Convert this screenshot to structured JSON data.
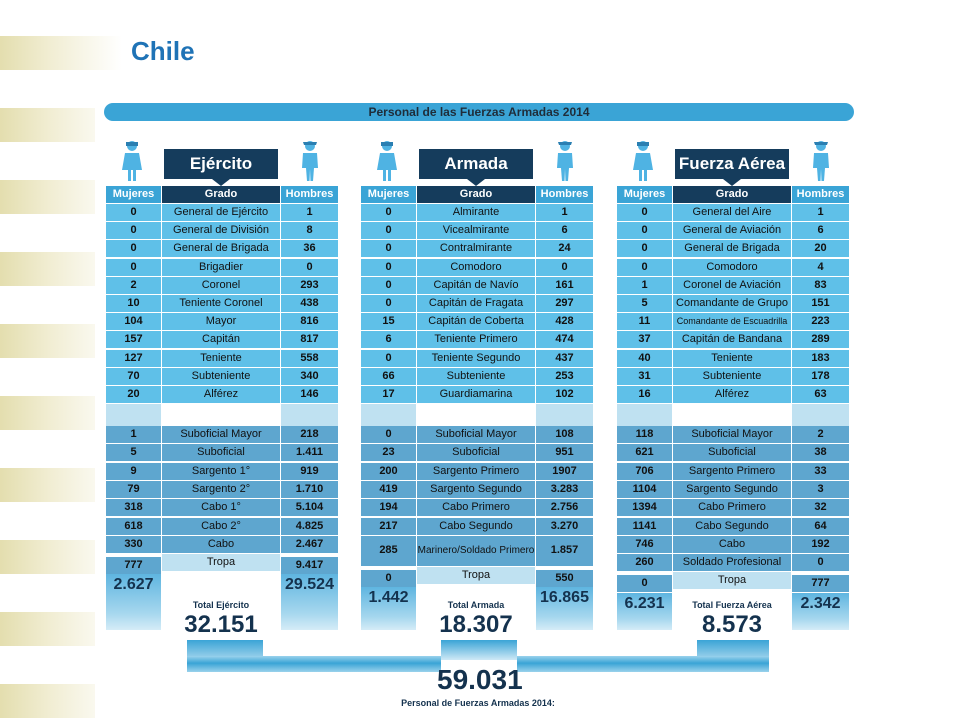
{
  "slide_title": "Chile",
  "banner": "Personal de las Fuerzas Armadas 2014",
  "column_headers": {
    "women": "Mujeres",
    "rank": "Grado",
    "men": "Hombres"
  },
  "branches": [
    {
      "name": "Ejército",
      "officers": [
        {
          "w": "0",
          "rank": "General de Ejército",
          "m": "1"
        },
        {
          "w": "0",
          "rank": "General de División",
          "m": "8"
        },
        {
          "w": "0",
          "rank": "General de Brigada",
          "m": "36"
        },
        {
          "w": "0",
          "rank": "Brigadier",
          "m": "0"
        },
        {
          "w": "2",
          "rank": "Coronel",
          "m": "293"
        },
        {
          "w": "10",
          "rank": "Teniente Coronel",
          "m": "438"
        },
        {
          "w": "104",
          "rank": "Mayor",
          "m": "816"
        },
        {
          "w": "157",
          "rank": "Capitán",
          "m": "817"
        },
        {
          "w": "127",
          "rank": "Teniente",
          "m": "558"
        },
        {
          "w": "70",
          "rank": "Subteniente",
          "m": "340"
        },
        {
          "w": "20",
          "rank": "Alférez",
          "m": "146"
        }
      ],
      "ncos": [
        {
          "w": "1",
          "rank": "Suboficial Mayor",
          "m": "218"
        },
        {
          "w": "5",
          "rank": "Suboficial",
          "m": "1.411"
        },
        {
          "w": "9",
          "rank": "Sargento 1°",
          "m": "919"
        },
        {
          "w": "79",
          "rank": "Sargento 2°",
          "m": "1.710"
        },
        {
          "w": "318",
          "rank": "Cabo 1°",
          "m": "5.104"
        },
        {
          "w": "618",
          "rank": "Cabo 2°",
          "m": "4.825"
        },
        {
          "w": "330",
          "rank": "Cabo",
          "m": "2.467"
        },
        {
          "w": "777",
          "rank": "Tropa",
          "m": "9.417"
        }
      ],
      "total_women": "2.627",
      "total_men": "29.524",
      "total_label": "Total Ejército",
      "total": "32.151"
    },
    {
      "name": "Armada",
      "officers": [
        {
          "w": "0",
          "rank": "Almirante",
          "m": "1"
        },
        {
          "w": "0",
          "rank": "Vicealmirante",
          "m": "6"
        },
        {
          "w": "0",
          "rank": "Contralmirante",
          "m": "24"
        },
        {
          "w": "0",
          "rank": "Comodoro",
          "m": "0"
        },
        {
          "w": "0",
          "rank": "Capitán de Navío",
          "m": "161"
        },
        {
          "w": "0",
          "rank": "Capitán de Fragata",
          "m": "297"
        },
        {
          "w": "15",
          "rank": "Capitán de Coberta",
          "m": "428"
        },
        {
          "w": "6",
          "rank": "Teniente Primero",
          "m": "474"
        },
        {
          "w": "0",
          "rank": "Teniente Segundo",
          "m": "437"
        },
        {
          "w": "66",
          "rank": "Subteniente",
          "m": "253"
        },
        {
          "w": "17",
          "rank": "Guardiamarina",
          "m": "102"
        }
      ],
      "ncos": [
        {
          "w": "0",
          "rank": "Suboficial Mayor",
          "m": "108"
        },
        {
          "w": "23",
          "rank": "Suboficial",
          "m": "951"
        },
        {
          "w": "200",
          "rank": "Sargento Primero",
          "m": "1907"
        },
        {
          "w": "419",
          "rank": "Sargento Segundo",
          "m": "3.283"
        },
        {
          "w": "194",
          "rank": "Cabo Primero",
          "m": "2.756"
        },
        {
          "w": "217",
          "rank": "Cabo Segundo",
          "m": "3.270"
        },
        {
          "w": "285",
          "rank": "Marinero/Soldado Primero",
          "m": "1.857"
        },
        {
          "w": "0",
          "rank": "Tropa",
          "m": "550"
        }
      ],
      "total_women": "1.442",
      "total_men": "16.865",
      "total_label": "Total Armada",
      "total": "18.307"
    },
    {
      "name": "Fuerza Aérea",
      "officers": [
        {
          "w": "0",
          "rank": "General del Aire",
          "m": "1"
        },
        {
          "w": "0",
          "rank": "General de Aviación",
          "m": "6"
        },
        {
          "w": "0",
          "rank": "General de Brigada",
          "m": "20"
        },
        {
          "w": "0",
          "rank": "Comodoro",
          "m": "4"
        },
        {
          "w": "1",
          "rank": "Coronel de Aviación",
          "m": "83"
        },
        {
          "w": "5",
          "rank": "Comandante de Grupo",
          "m": "151"
        },
        {
          "w": "11",
          "rank": "Comandante de Escuadrilla",
          "m": "223"
        },
        {
          "w": "37",
          "rank": "Capitán de Bandana",
          "m": "289"
        },
        {
          "w": "40",
          "rank": "Teniente",
          "m": "183"
        },
        {
          "w": "31",
          "rank": "Subteniente",
          "m": "178"
        },
        {
          "w": "16",
          "rank": "Alférez",
          "m": "63"
        }
      ],
      "ncos": [
        {
          "w": "118",
          "rank": "Suboficial Mayor",
          "m": "2"
        },
        {
          "w": "621",
          "rank": "Suboficial",
          "m": "38"
        },
        {
          "w": "706",
          "rank": "Sargento Primero",
          "m": "33"
        },
        {
          "w": "1104",
          "rank": "Sargento Segundo",
          "m": "3"
        },
        {
          "w": "1394",
          "rank": "Cabo Primero",
          "m": "32"
        },
        {
          "w": "1141",
          "rank": "Cabo Segundo",
          "m": "64"
        },
        {
          "w": "746",
          "rank": "Cabo",
          "m": "192"
        },
        {
          "w": "260",
          "rank": "Soldado Profesional",
          "m": "0"
        },
        {
          "w": "0",
          "rank": "Tropa",
          "m": "777"
        }
      ],
      "total_women": "6.231",
      "total_men": "2.342",
      "total_label": "Total Fuerza Aérea",
      "total": "8.573"
    }
  ],
  "grand_total": "59.031",
  "grand_total_label": "Personal de Fuerzas Armadas 2014:"
}
